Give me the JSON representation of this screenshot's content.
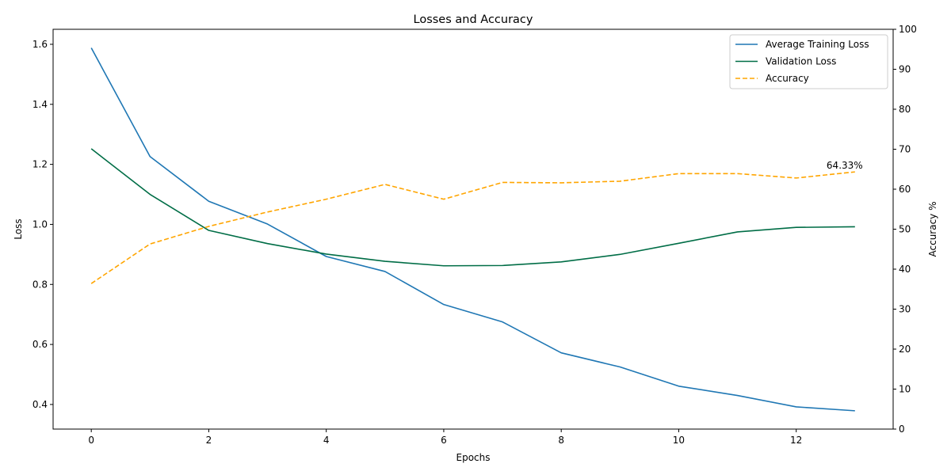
{
  "chart_data": {
    "type": "line",
    "title": "Losses and Accuracy",
    "xlabel": "Epochs",
    "ylabel": "Loss",
    "ylabel_right": "Accuracy %",
    "xlim": [
      -0.65,
      13.65
    ],
    "ylim": [
      0.318,
      1.65
    ],
    "ylim_right": [
      0,
      100
    ],
    "x_ticks": [
      0,
      2,
      4,
      6,
      8,
      10,
      12
    ],
    "y_ticks": [
      0.4,
      0.6,
      0.8,
      1.0,
      1.2,
      1.4,
      1.6
    ],
    "y_ticks_right": [
      0,
      10,
      20,
      30,
      40,
      50,
      60,
      70,
      80,
      90,
      100
    ],
    "x_tick_labels": [
      "0",
      "2",
      "4",
      "6",
      "8",
      "10",
      "12"
    ],
    "y_tick_labels": [
      "0.4",
      "0.6",
      "0.8",
      "1.0",
      "1.2",
      "1.4",
      "1.6"
    ],
    "y_tick_labels_right": [
      "0",
      "10",
      "20",
      "30",
      "40",
      "50",
      "60",
      "70",
      "80",
      "90",
      "100"
    ],
    "grid": false,
    "legend_position": "top-right",
    "x": [
      0,
      1,
      2,
      3,
      4,
      5,
      6,
      7,
      8,
      9,
      10,
      11,
      12,
      13
    ],
    "series": [
      {
        "name": "Average Training Loss",
        "axis": "left",
        "color": "#1f77b4",
        "style": "solid",
        "values": [
          1.588,
          1.226,
          1.077,
          1.001,
          0.893,
          0.843,
          0.733,
          0.675,
          0.572,
          0.525,
          0.461,
          0.43,
          0.392,
          0.379
        ]
      },
      {
        "name": "Validation Loss",
        "axis": "left",
        "color": "#006d46",
        "style": "solid",
        "values": [
          1.252,
          1.1,
          0.98,
          0.936,
          0.901,
          0.877,
          0.862,
          0.863,
          0.875,
          0.9,
          0.937,
          0.975,
          0.99,
          0.992
        ]
      },
      {
        "name": "Accuracy",
        "axis": "right",
        "color": "#ffa500",
        "style": "dashed",
        "values": [
          36.4,
          46.3,
          50.7,
          54.3,
          57.5,
          61.2,
          57.5,
          61.7,
          61.6,
          62.0,
          63.9,
          63.9,
          62.8,
          64.33
        ]
      }
    ],
    "annotation": {
      "text": "64.33%",
      "x": 13,
      "y": 64.33,
      "axis": "right"
    }
  }
}
